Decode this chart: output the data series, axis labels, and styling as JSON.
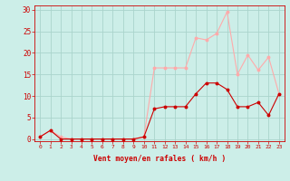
{
  "hours": [
    0,
    1,
    2,
    3,
    4,
    5,
    6,
    7,
    8,
    9,
    10,
    11,
    12,
    13,
    14,
    15,
    16,
    17,
    18,
    19,
    20,
    21,
    22,
    23
  ],
  "avg_wind": [
    0.5,
    2.0,
    0.0,
    0.0,
    0.0,
    0.0,
    0.0,
    0.0,
    0.0,
    0.0,
    0.5,
    7.0,
    7.5,
    7.5,
    7.5,
    10.5,
    13.0,
    13.0,
    11.5,
    7.5,
    7.5,
    8.5,
    5.5,
    10.5
  ],
  "gust_wind": [
    0.5,
    2.0,
    0.5,
    0.0,
    0.0,
    0.0,
    0.0,
    0.0,
    0.0,
    0.0,
    0.5,
    16.5,
    16.5,
    16.5,
    16.5,
    23.5,
    23.0,
    24.5,
    29.5,
    15.0,
    19.5,
    16.0,
    19.0,
    10.5
  ],
  "avg_color": "#cc0000",
  "gust_color": "#ffaaaa",
  "bg_color": "#cceee8",
  "grid_color": "#aad4cc",
  "xlabel": "Vent moyen/en rafales ( km/h )",
  "yticks": [
    0,
    5,
    10,
    15,
    20,
    25,
    30
  ],
  "ylim": [
    -0.5,
    31
  ],
  "xlim": [
    -0.5,
    23.5
  ]
}
